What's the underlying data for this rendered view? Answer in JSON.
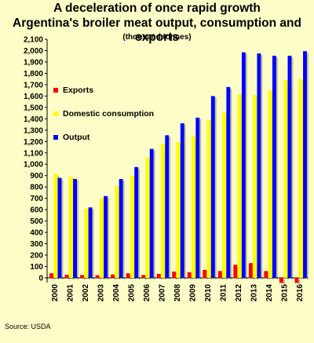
{
  "title": "A deceleration of once rapid growth",
  "subtitle": "Argentina's broiler meat output, consumption and exports",
  "units": "(thousand tonnes)",
  "source": "Source: USDA",
  "chart_data": {
    "type": "bar",
    "categories": [
      "2000",
      "2001",
      "2002",
      "2003",
      "2004",
      "2005",
      "2006",
      "2007",
      "2008",
      "2009",
      "2010",
      "2011",
      "2012",
      "2013",
      "2014",
      "2015",
      "2016"
    ],
    "series": [
      {
        "name": "Exports",
        "color": "#ff0000",
        "values": [
          40,
          28,
          25,
          23,
          30,
          40,
          25,
          35,
          55,
          50,
          70,
          60,
          115,
          130,
          60,
          -45,
          -45
        ]
      },
      {
        "name": "Domestic consumption",
        "color": "#ffff00",
        "values": [
          915,
          890,
          610,
          700,
          810,
          900,
          1060,
          1180,
          1195,
          1245,
          1390,
          1455,
          1615,
          1610,
          1650,
          1740,
          1750
        ]
      },
      {
        "name": "Output",
        "color": "#0000ff",
        "values": [
          880,
          870,
          620,
          720,
          870,
          975,
          1135,
          1255,
          1360,
          1410,
          1600,
          1680,
          1985,
          1975,
          1955,
          1955,
          1995
        ]
      }
    ],
    "ylim": [
      0,
      2100
    ],
    "yticks": [
      0,
      100,
      200,
      300,
      400,
      500,
      600,
      700,
      800,
      900,
      1000,
      1100,
      1200,
      1300,
      1400,
      1500,
      1600,
      1700,
      1800,
      1900,
      2000,
      2100
    ],
    "ytick_labels": [
      "0",
      "100",
      "200",
      "300",
      "400",
      "500",
      "600",
      "700",
      "800",
      "900",
      "1,000",
      "1,100",
      "1,200",
      "1,300",
      "1,400",
      "1,500",
      "1,600",
      "1,700",
      "1,800",
      "1,900",
      "2,000",
      "2,100"
    ],
    "legend": "top-left",
    "grid": false
  }
}
